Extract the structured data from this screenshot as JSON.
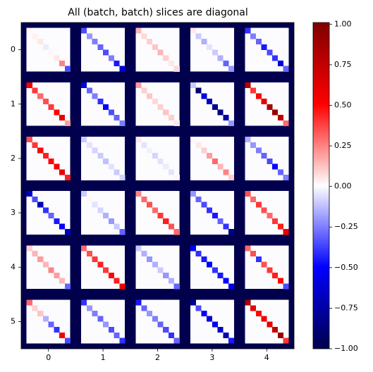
{
  "chart_data": {
    "type": "heatmap",
    "title": "All (batch, batch) slices are diagonal",
    "colormap": "seismic",
    "clim": [
      -1,
      1.01
    ],
    "pad_value": -1,
    "fill_value": 0,
    "xlim": [
      -0.5,
      4.5
    ],
    "ylim": [
      5.5,
      -0.5
    ],
    "xticks": [
      0,
      1,
      2,
      3,
      4
    ],
    "yticks": [
      0,
      1,
      2,
      3,
      4,
      5
    ],
    "colorbar_ticks": [
      {
        "value": -1,
        "label": "−1.00"
      },
      {
        "value": -0.75,
        "label": "−0.75"
      },
      {
        "value": -0.5,
        "label": "−0.50"
      },
      {
        "value": -0.25,
        "label": "−0.25"
      },
      {
        "value": 0,
        "label": "0.00"
      },
      {
        "value": 0.25,
        "label": "0.25"
      },
      {
        "value": 0.5,
        "label": "0.50"
      },
      {
        "value": 0.75,
        "label": "0.75"
      },
      {
        "value": 1,
        "label": "1.00"
      }
    ],
    "values": [
      [
        [
          0.02,
          0.03,
          0.05,
          -0.03,
          0.02,
          0.05,
          0.25,
          -0.35
        ],
        [
          -0.35,
          -0.2,
          -0.25,
          -0.3,
          -0.35,
          -0.25,
          -0.45,
          -0.6
        ],
        [
          0.15,
          0.08,
          0.1,
          0.12,
          0.15,
          0.1,
          0.05,
          0.08
        ],
        [
          0.05,
          -0.1,
          -0.15,
          -0.05,
          -0.1,
          -0.15,
          -0.3,
          -0.2
        ],
        [
          -0.4,
          -0.25,
          -0.3,
          -0.45,
          -0.35,
          -0.4,
          -0.6,
          -0.3
        ]
      ],
      [
        [
          0.55,
          0.4,
          0.3,
          0.35,
          0.4,
          0.5,
          0.6,
          0.2
        ],
        [
          -0.6,
          -0.3,
          -0.25,
          -0.4,
          -0.5,
          -0.35,
          -0.3,
          -0.25
        ],
        [
          0.2,
          0.1,
          0.12,
          0.08,
          0.1,
          0.12,
          0.1,
          0.05
        ],
        [
          -0.1,
          -0.9,
          -0.6,
          -0.7,
          -0.8,
          -0.85,
          -0.75,
          -0.2
        ],
        [
          0.8,
          0.4,
          0.5,
          0.6,
          0.85,
          0.9,
          0.75,
          0.3
        ]
      ],
      [
        [
          0.35,
          0.4,
          0.5,
          0.45,
          0.5,
          0.55,
          0.6,
          0.45
        ],
        [
          -0.1,
          -0.05,
          -0.08,
          -0.1,
          -0.12,
          -0.05,
          -0.1,
          -0.08
        ],
        [
          0.05,
          -0.05,
          -0.02,
          -0.08,
          -0.05,
          -0.03,
          -0.05,
          0.02
        ],
        [
          0.02,
          0.05,
          0.1,
          0.2,
          0.3,
          0.15,
          0.25,
          0.1
        ],
        [
          -0.15,
          -0.2,
          -0.25,
          -0.3,
          -0.35,
          -0.5,
          -0.3,
          -0.25
        ]
      ],
      [
        [
          -0.65,
          -0.35,
          -0.7,
          -0.4,
          -0.3,
          -0.45,
          -0.5,
          -0.7
        ],
        [
          -0.1,
          0.02,
          -0.05,
          -0.08,
          -0.15,
          -0.2,
          -0.1,
          -0.3
        ],
        [
          0.25,
          0.3,
          0.35,
          0.3,
          0.4,
          0.45,
          0.35,
          0.3
        ],
        [
          -0.2,
          -0.3,
          -0.35,
          -0.4,
          -0.45,
          -0.3,
          -0.4,
          -0.85
        ],
        [
          0.35,
          0.3,
          0.4,
          0.35,
          0.3,
          0.4,
          0.45,
          0.6
        ]
      ],
      [
        [
          0.1,
          0.15,
          0.2,
          0.15,
          0.25,
          0.2,
          0.15,
          -0.3
        ],
        [
          0.3,
          0.35,
          0.4,
          0.45,
          0.4,
          0.5,
          0.45,
          0.55
        ],
        [
          -0.1,
          -0.15,
          -0.2,
          -0.15,
          -0.1,
          -0.2,
          -0.15,
          -0.3
        ],
        [
          -0.5,
          -0.4,
          -0.45,
          -0.5,
          -0.4,
          -0.45,
          -0.5,
          -0.55
        ],
        [
          0.3,
          0.35,
          -0.4,
          0.35,
          0.4,
          0.45,
          0.5,
          -0.35
        ]
      ],
      [
        [
          0.3,
          0.1,
          0.12,
          -0.15,
          -0.3,
          -0.4,
          0.55,
          -0.35
        ],
        [
          -0.4,
          -0.2,
          -0.25,
          -0.3,
          -0.2,
          -0.35,
          -0.3,
          -0.4
        ],
        [
          -0.45,
          -0.3,
          -0.2,
          -0.25,
          -0.3,
          -0.35,
          -0.4,
          -0.3
        ],
        [
          -0.8,
          -0.35,
          -0.5,
          -0.6,
          -0.55,
          -0.65,
          -0.7,
          -0.45
        ],
        [
          0.85,
          0.6,
          0.5,
          0.55,
          0.6,
          0.75,
          0.9,
          0.4
        ]
      ]
    ]
  }
}
